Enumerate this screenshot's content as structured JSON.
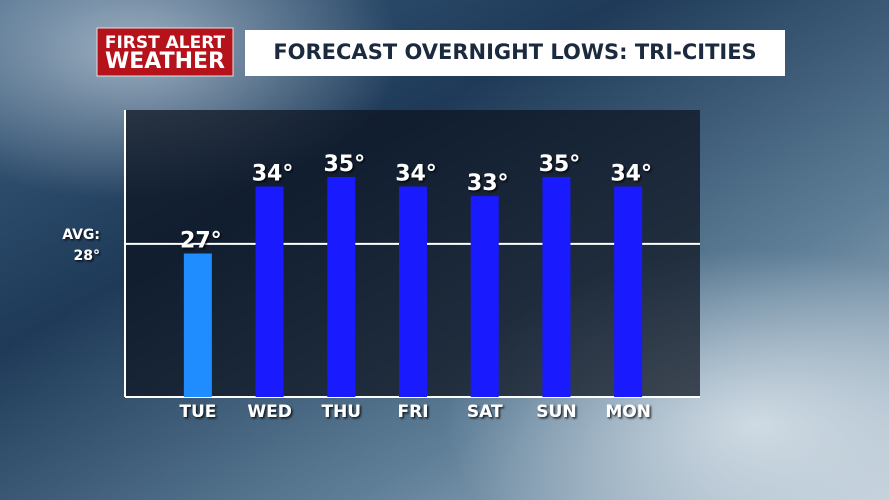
{
  "chart_data": {
    "type": "bar",
    "logo": [
      "FIRST ALERT",
      "WEATHER"
    ],
    "title": "FORECAST OVERNIGHT LOWS: TRI-CITIES",
    "categories": [
      "TUE",
      "WED",
      "THU",
      "FRI",
      "SAT",
      "SUN",
      "MON"
    ],
    "values": [
      27,
      34,
      35,
      34,
      33,
      35,
      34
    ],
    "value_labels": [
      "27°",
      "34°",
      "35°",
      "34°",
      "33°",
      "35°",
      "34°"
    ],
    "colors": [
      "#1f8cff",
      "#1a1aff",
      "#1a1aff",
      "#1a1aff",
      "#1a1aff",
      "#1a1aff",
      "#1a1aff"
    ],
    "ylim": [
      12,
      42
    ],
    "reference_line": {
      "label": "AVG:",
      "value": 28,
      "value_label": "28°"
    }
  }
}
